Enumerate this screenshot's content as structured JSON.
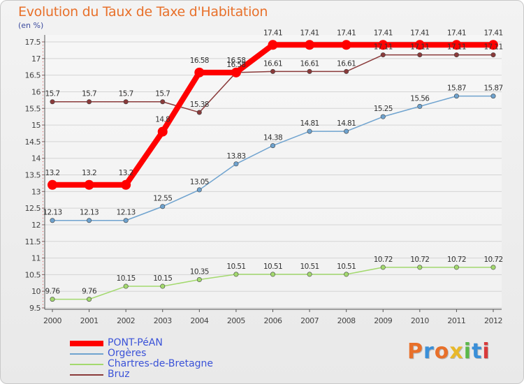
{
  "title": "Evolution du Taux de Taxe d'Habitation",
  "unit_label": "(en %)",
  "logo_text": "Proxiti",
  "logo_colors": [
    "#e8702a",
    "#3a8fd8",
    "#e8702a",
    "#e8b82a",
    "#5ab84a",
    "#3a8fd8",
    "#d83a3a"
  ],
  "chart_data": {
    "type": "line",
    "title": "Evolution du Taux de Taxe d'Habitation",
    "ylabel": "(en %)",
    "xlabel": "",
    "x": [
      "2000",
      "2001",
      "2002",
      "2003",
      "2004",
      "2005",
      "2006",
      "2007",
      "2008",
      "2009",
      "2010",
      "2011",
      "2012"
    ],
    "ylim": [
      9.5,
      17.5
    ],
    "yticks": [
      9.5,
      10,
      10.5,
      11,
      11.5,
      12,
      12.5,
      13,
      13.5,
      14,
      14.5,
      15,
      15.5,
      16,
      16.5,
      17,
      17.5
    ],
    "ytick_labels": [
      "9.5",
      "10",
      "10.5",
      "11",
      "11.5",
      "12",
      "12.5",
      "13",
      "13.5",
      "14",
      "14.5",
      "15",
      "15.5",
      "16",
      "16.5",
      "17",
      "17.5"
    ],
    "grid": "horizontal",
    "legend_position": "bottom-left",
    "series": [
      {
        "name": "PONT-PéAN",
        "color": "#ff0000",
        "values": [
          13.2,
          13.2,
          13.2,
          14.8,
          16.58,
          16.58,
          17.41,
          17.41,
          17.41,
          17.41,
          17.41,
          17.41,
          17.41
        ],
        "labels": [
          "13.2",
          "13.2",
          "13.2",
          "14.8",
          "16.58",
          "16.58",
          "17.41",
          "17.41",
          "17.41",
          "17.41",
          "17.41",
          "17.41",
          "17.41"
        ]
      },
      {
        "name": "Orgères",
        "color": "#6fa3cf",
        "values": [
          12.13,
          12.13,
          12.13,
          12.55,
          13.05,
          13.83,
          14.38,
          14.81,
          14.81,
          15.25,
          15.56,
          15.87,
          15.87
        ],
        "labels": [
          "12.13",
          "12.13",
          "12.13",
          "12.55",
          "13.05",
          "13.83",
          "14.38",
          "14.81",
          "14.81",
          "15.25",
          "15.56",
          "15.87",
          "15.87"
        ]
      },
      {
        "name": "Chartres-de-Bretagne",
        "color": "#a3d96e",
        "values": [
          9.76,
          9.76,
          10.15,
          10.15,
          10.35,
          10.51,
          10.51,
          10.51,
          10.51,
          10.72,
          10.72,
          10.72,
          10.72
        ],
        "labels": [
          "9.76",
          "9.76",
          "10.15",
          "10.15",
          "10.35",
          "10.51",
          "10.51",
          "10.51",
          "10.51",
          "10.72",
          "10.72",
          "10.72",
          "10.72"
        ]
      },
      {
        "name": "Bruz",
        "color": "#8a3a3a",
        "values": [
          15.7,
          15.7,
          15.7,
          15.7,
          15.38,
          16.58,
          16.61,
          16.61,
          16.61,
          17.11,
          17.11,
          17.11,
          17.11
        ],
        "labels": [
          "15.7",
          "15.7",
          "15.7",
          "15.7",
          "15.38",
          "16.58",
          "16.61",
          "16.61",
          "16.61",
          "17.11",
          "17.11",
          "17.11",
          "17.11"
        ]
      }
    ]
  }
}
